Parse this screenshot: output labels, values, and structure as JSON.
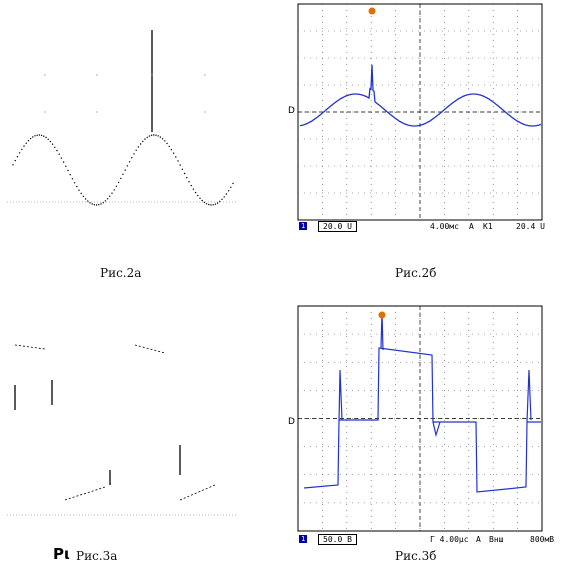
{
  "figures": [
    {
      "id": "fig-2a",
      "caption": "Рис.2а"
    },
    {
      "id": "fig-2b",
      "caption": "Рис.2б",
      "scope": {
        "channel": "1",
        "volts_per_div": "20.0 U",
        "time_per_div": "4.00мс",
        "mode": "A",
        "trigger_source": "К1",
        "trigger_level": "20.4 U"
      }
    },
    {
      "id": "fig-3a",
      "caption": "Рис.3а",
      "prefix_mark": "Рι"
    },
    {
      "id": "fig-3b",
      "caption": "Рис.3б",
      "scope": {
        "channel": "1",
        "volts_per_div": "50.0 В",
        "time_per_div": "Г 4.00µс",
        "mode": "A",
        "trigger_source": "Внш",
        "trigger_level": "800мВ"
      }
    }
  ],
  "colors": {
    "trace": "#2233cc",
    "ink": "#000000",
    "grid": "#555555",
    "marker": "#e07000"
  }
}
